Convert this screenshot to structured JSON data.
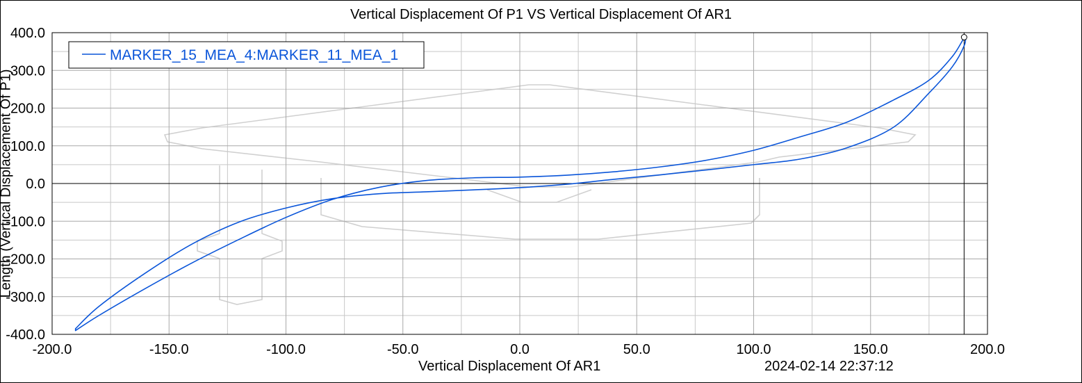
{
  "chart_data": {
    "type": "line",
    "title": "Vertical Displacement Of P1 VS Vertical Displacement Of AR1",
    "xlabel": "Vertical Displacement Of AR1",
    "ylabel": "Length (Vertical Displacement Of P1)",
    "timestamp": "2024-02-14 22:37:12",
    "xlim": [
      -200.0,
      200.0
    ],
    "ylim": [
      -400.0,
      400.0
    ],
    "xticks": [
      "-200.0",
      "-150.0",
      "-100.0",
      "-50.0",
      "0.0",
      "50.0",
      "100.0",
      "150.0",
      "200.0"
    ],
    "yticks": [
      "400.0",
      "300.0",
      "200.0",
      "100.0",
      "0.0",
      "-100.0",
      "-200.0",
      "-300.0",
      "-400.0"
    ],
    "xtick_values": [
      -200,
      -150,
      -100,
      -50,
      0,
      50,
      100,
      150,
      200
    ],
    "ytick_values": [
      400,
      300,
      200,
      100,
      0,
      -100,
      -200,
      -300,
      -400
    ],
    "grid": true,
    "legend_position": "top-left",
    "series": [
      {
        "name": "MARKER_15_MEA_4:MARKER_11_MEA_1",
        "color": "#0a55d9",
        "x": [
          -190,
          -180,
          -160,
          -140,
          -120,
          -100,
          -80,
          -60,
          -40,
          -20,
          0,
          20,
          40,
          60,
          80,
          100,
          120,
          140,
          160,
          175,
          185,
          190,
          190,
          185,
          175,
          160,
          140,
          120,
          100,
          80,
          60,
          40,
          20,
          0,
          -20,
          -40,
          -60,
          -80,
          -100,
          -120,
          -140,
          -160,
          -180,
          -190
        ],
        "y": [
          -390,
          -350,
          -278,
          -210,
          -148,
          -90,
          -42,
          -10,
          8,
          15,
          17,
          22,
          31,
          44,
          62,
          88,
          124,
          163,
          222,
          274,
          337,
          385,
          365,
          310,
          240,
          150,
          95,
          65,
          50,
          36,
          23,
          11,
          -2,
          -11,
          -17,
          -22,
          -27,
          -40,
          -65,
          -102,
          -160,
          -237,
          -326,
          -385
        ]
      }
    ],
    "end_marker": {
      "x": 190,
      "y": 388
    },
    "watermark_color": "#d0d0d0"
  }
}
